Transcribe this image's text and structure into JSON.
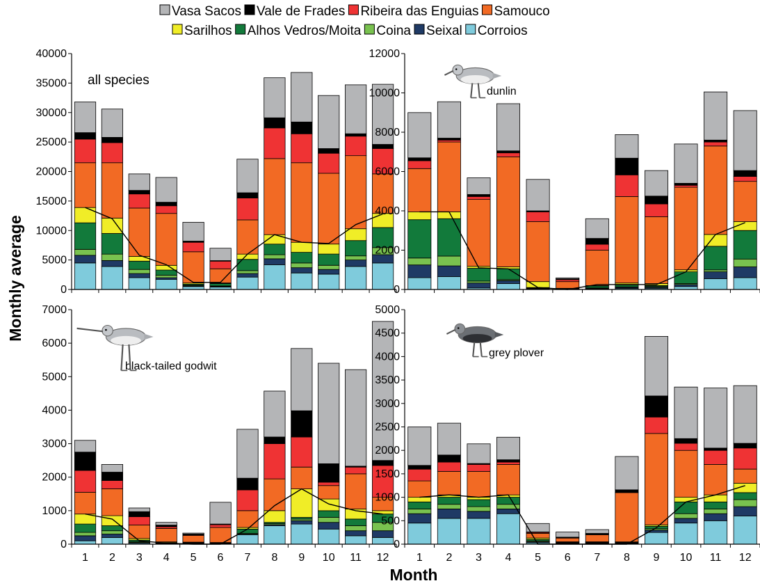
{
  "chart_data": [
    {
      "type": "bar",
      "stacked": true,
      "panel_label": "all species",
      "categories": [
        "1",
        "2",
        "3",
        "4",
        "5",
        "6",
        "7",
        "8",
        "9",
        "10",
        "11",
        "12"
      ],
      "ylim": [
        0,
        40000
      ],
      "yticks": [
        0,
        5000,
        10000,
        15000,
        20000,
        25000,
        30000,
        35000,
        40000
      ],
      "series": [
        {
          "name": "Corroios",
          "values": [
            4500,
            3900,
            2000,
            1700,
            500,
            400,
            2100,
            4200,
            2800,
            2600,
            3900,
            4500
          ]
        },
        {
          "name": "Seixal",
          "values": [
            1300,
            1000,
            700,
            300,
            100,
            100,
            600,
            1000,
            900,
            800,
            1100,
            1400
          ]
        },
        {
          "name": "Coina",
          "values": [
            1000,
            1100,
            700,
            400,
            100,
            100,
            500,
            700,
            800,
            700,
            700,
            1200
          ]
        },
        {
          "name": "Alhos Vedros/Moita",
          "values": [
            4500,
            3500,
            1400,
            900,
            200,
            400,
            1900,
            1800,
            1800,
            1900,
            2600,
            3400
          ]
        },
        {
          "name": "Sarilhos",
          "values": [
            2600,
            2600,
            800,
            800,
            200,
            100,
            900,
            1600,
            1700,
            1700,
            2000,
            2400
          ]
        },
        {
          "name": "Samouco",
          "values": [
            7600,
            9400,
            8200,
            8800,
            5300,
            2400,
            5800,
            12900,
            13500,
            12000,
            12400,
            6700
          ]
        },
        {
          "name": "Ribeira das Enguias",
          "values": [
            4000,
            3400,
            2400,
            1300,
            1600,
            1300,
            3700,
            5200,
            4900,
            3400,
            3300,
            4300
          ]
        },
        {
          "name": "Vale de Frades",
          "values": [
            1100,
            900,
            600,
            600,
            200,
            100,
            900,
            1700,
            2000,
            800,
            400,
            700
          ]
        },
        {
          "name": "Vasa Sacos",
          "values": [
            5200,
            4800,
            2800,
            4200,
            3200,
            2100,
            5700,
            6800,
            8400,
            9000,
            8300,
            10200
          ]
        }
      ],
      "line_values": [
        13900,
        12000,
        5800,
        4200,
        1200,
        1200,
        6000,
        9300,
        8000,
        7800,
        11000,
        12800
      ]
    },
    {
      "type": "bar",
      "stacked": true,
      "panel_label": "dunlin",
      "categories": [
        "1",
        "2",
        "3",
        "4",
        "5",
        "6",
        "7",
        "8",
        "9",
        "10",
        "11",
        "12"
      ],
      "ylim": [
        0,
        12000
      ],
      "yticks": [
        0,
        2000,
        4000,
        6000,
        8000,
        10000,
        12000
      ],
      "series": [
        {
          "name": "Corroios",
          "values": [
            600,
            650,
            80,
            300,
            30,
            10,
            30,
            50,
            60,
            150,
            550,
            600
          ]
        },
        {
          "name": "Seixal",
          "values": [
            650,
            550,
            250,
            150,
            30,
            10,
            30,
            50,
            50,
            100,
            350,
            550
          ]
        },
        {
          "name": "Coina",
          "values": [
            350,
            500,
            100,
            50,
            20,
            10,
            20,
            30,
            40,
            50,
            100,
            400
          ]
        },
        {
          "name": "Alhos Vedros/Moita",
          "values": [
            1950,
            1900,
            650,
            550,
            20,
            20,
            100,
            100,
            50,
            600,
            1200,
            1450
          ]
        },
        {
          "name": "Sarilhos",
          "values": [
            400,
            350,
            100,
            100,
            300,
            10,
            20,
            100,
            100,
            100,
            600,
            450
          ]
        },
        {
          "name": "Samouco",
          "values": [
            2200,
            3550,
            3400,
            5600,
            3050,
            340,
            1800,
            4400,
            3400,
            4200,
            4500,
            2050
          ]
        },
        {
          "name": "Ribeira das Enguias",
          "values": [
            400,
            100,
            150,
            200,
            500,
            100,
            300,
            1100,
            650,
            100,
            200,
            250
          ]
        },
        {
          "name": "Vale de Frades",
          "values": [
            150,
            100,
            100,
            100,
            50,
            40,
            300,
            850,
            400,
            100,
            100,
            300
          ]
        },
        {
          "name": "Vasa Sacos",
          "values": [
            2300,
            1850,
            850,
            2400,
            1600,
            50,
            1000,
            1200,
            1300,
            2000,
            2450,
            3050
          ]
        }
      ],
      "line_values": [
        3950,
        3950,
        1100,
        1050,
        100,
        0,
        250,
        250,
        250,
        900,
        2800,
        3400
      ]
    },
    {
      "type": "bar",
      "stacked": true,
      "panel_label": "black-tailed godwit",
      "categories": [
        "1",
        "2",
        "3",
        "4",
        "5",
        "6",
        "7",
        "8",
        "9",
        "10",
        "11",
        "12"
      ],
      "ylim": [
        0,
        7000
      ],
      "yticks": [
        0,
        1000,
        2000,
        3000,
        4000,
        5000,
        6000,
        7000
      ],
      "series": [
        {
          "name": "Corroios",
          "values": [
            100,
            200,
            30,
            20,
            20,
            10,
            280,
            550,
            600,
            450,
            250,
            200
          ]
        },
        {
          "name": "Seixal",
          "values": [
            150,
            100,
            20,
            10,
            10,
            10,
            20,
            30,
            100,
            200,
            150,
            200
          ]
        },
        {
          "name": "Coina",
          "values": [
            100,
            100,
            20,
            10,
            10,
            10,
            20,
            30,
            50,
            150,
            150,
            250
          ]
        },
        {
          "name": "Alhos Vedros/Moita",
          "values": [
            250,
            150,
            50,
            10,
            10,
            10,
            130,
            40,
            50,
            200,
            200,
            250
          ]
        },
        {
          "name": "Sarilhos",
          "values": [
            300,
            300,
            50,
            20,
            10,
            10,
            50,
            350,
            850,
            350,
            300,
            100
          ]
        },
        {
          "name": "Samouco",
          "values": [
            650,
            800,
            400,
            400,
            200,
            450,
            500,
            950,
            650,
            400,
            1050,
            400
          ]
        },
        {
          "name": "Ribeira das Enguias",
          "values": [
            650,
            250,
            250,
            50,
            20,
            80,
            620,
            1050,
            900,
            100,
            200,
            950
          ]
        },
        {
          "name": "Vale de Frades",
          "values": [
            550,
            250,
            150,
            50,
            20,
            20,
            350,
            200,
            780,
            550,
            30,
            150
          ]
        },
        {
          "name": "Vasa Sacos",
          "values": [
            350,
            230,
            110,
            80,
            30,
            650,
            1460,
            1370,
            1860,
            3000,
            2880,
            4150
          ]
        }
      ],
      "line_values": [
        900,
        750,
        100,
        30,
        0,
        0,
        450,
        1150,
        1650,
        1200,
        1000,
        900
      ]
    },
    {
      "type": "bar",
      "stacked": true,
      "panel_label": "grey plover",
      "categories": [
        "1",
        "2",
        "3",
        "4",
        "5",
        "6",
        "7",
        "8",
        "9",
        "10",
        "11",
        "12"
      ],
      "ylim": [
        0,
        5000
      ],
      "yticks": [
        0,
        500,
        1000,
        1500,
        2000,
        2500,
        3000,
        3500,
        4000,
        4500,
        5000
      ],
      "series": [
        {
          "name": "Corroios",
          "values": [
            450,
            550,
            550,
            650,
            30,
            10,
            10,
            10,
            250,
            450,
            500,
            600
          ]
        },
        {
          "name": "Seixal",
          "values": [
            200,
            200,
            150,
            100,
            20,
            10,
            10,
            10,
            50,
            100,
            150,
            200
          ]
        },
        {
          "name": "Coina",
          "values": [
            100,
            100,
            100,
            100,
            20,
            10,
            10,
            10,
            30,
            100,
            100,
            150
          ]
        },
        {
          "name": "Alhos Vedros/Moita",
          "values": [
            150,
            150,
            150,
            150,
            30,
            10,
            10,
            10,
            50,
            250,
            150,
            150
          ]
        },
        {
          "name": "Sarilhos",
          "values": [
            100,
            50,
            50,
            50,
            30,
            10,
            10,
            10,
            30,
            100,
            150,
            200
          ]
        },
        {
          "name": "Samouco",
          "values": [
            350,
            500,
            550,
            650,
            100,
            80,
            150,
            1050,
            1950,
            1000,
            650,
            300
          ]
        },
        {
          "name": "Ribeira das Enguias",
          "values": [
            250,
            200,
            150,
            50,
            20,
            10,
            10,
            10,
            350,
            150,
            300,
            450
          ]
        },
        {
          "name": "Vale de Frades",
          "values": [
            80,
            150,
            20,
            50,
            10,
            10,
            20,
            50,
            450,
            100,
            50,
            100
          ]
        },
        {
          "name": "Vasa Sacos",
          "values": [
            820,
            680,
            420,
            480,
            180,
            110,
            80,
            710,
            1270,
            1100,
            1280,
            1230
          ]
        }
      ],
      "line_values": [
        1000,
        1050,
        1000,
        1050,
        0,
        0,
        0,
        0,
        350,
        900,
        1050,
        1250
      ]
    }
  ],
  "axis": {
    "xlabel": "Month",
    "ylabel": "Monthly average"
  },
  "legend_order": [
    "Vasa Sacos",
    "Vale de Frades",
    "Ribeira das Enguias",
    "Samouco",
    "Sarilhos",
    "Alhos Vedros/Moita",
    "Coina",
    "Seixal",
    "Corroios"
  ],
  "colors": {
    "Vasa Sacos": "#b4b5b7",
    "Vale de Frades": "#000000",
    "Ribeira das Enguias": "#ef3334",
    "Samouco": "#f26a24",
    "Sarilhos": "#f0ed27",
    "Alhos Vedros/Moita": "#127a3b",
    "Coina": "#79c24f",
    "Seixal": "#1f3a65",
    "Corroios": "#7fcbdc",
    "line": "#000000"
  },
  "bird_icons": [
    "dunlin-icon",
    "black-tailed-godwit-icon",
    "grey-plover-icon"
  ]
}
